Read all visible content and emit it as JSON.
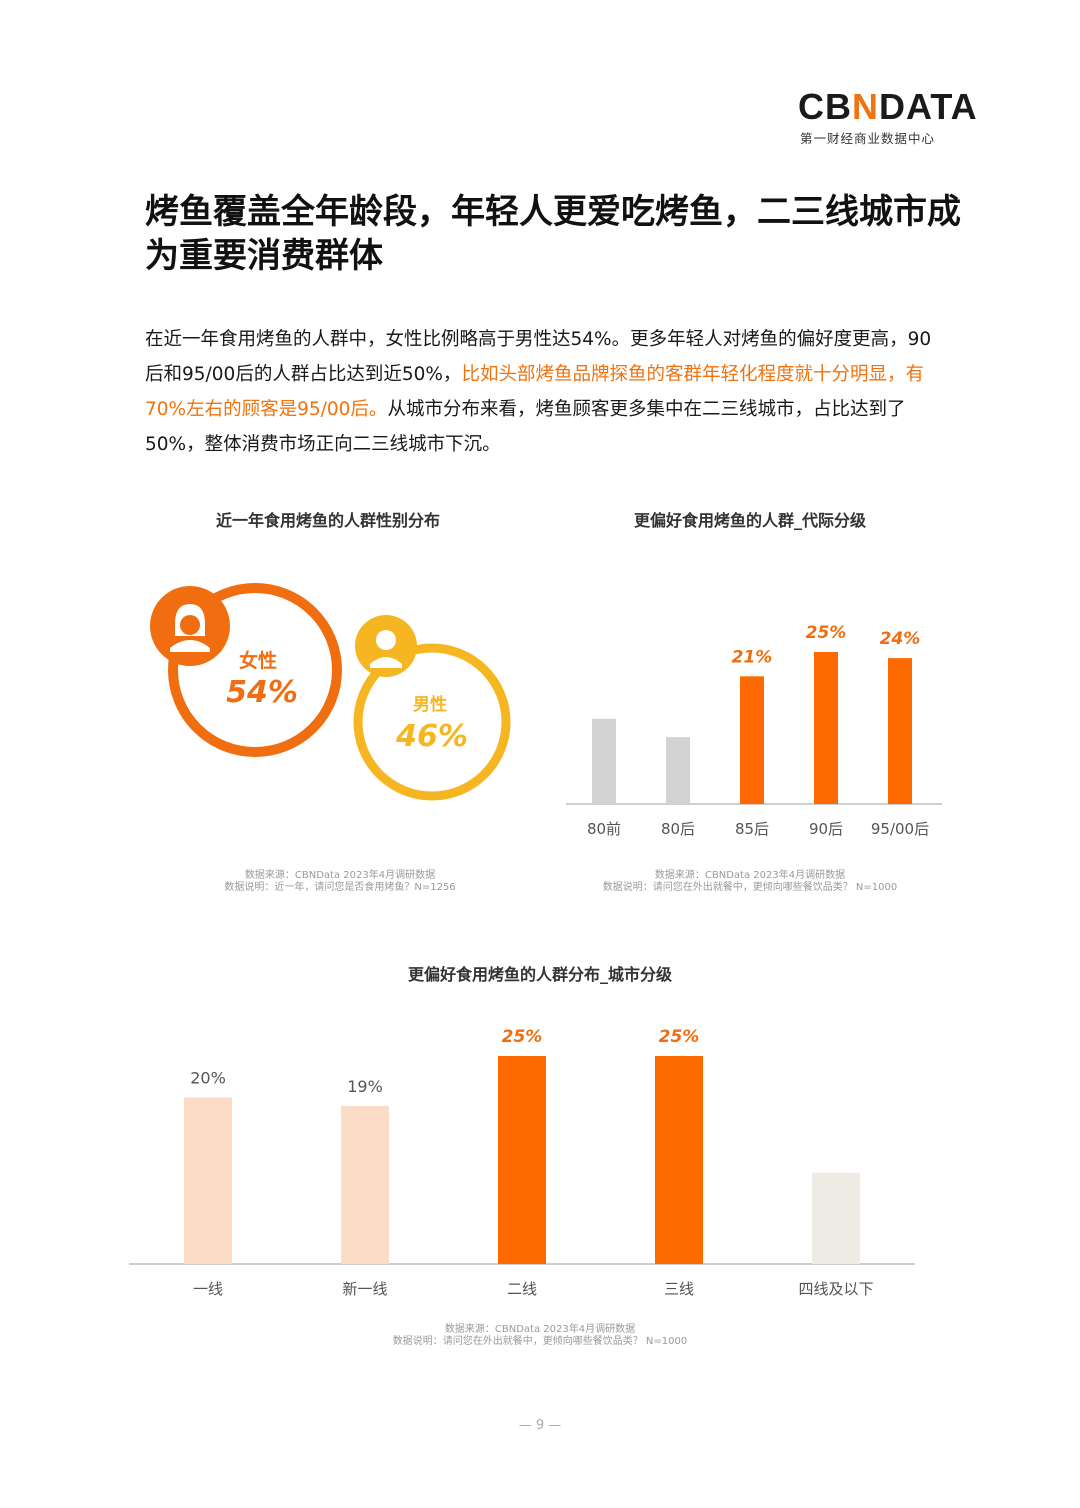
{
  "logo": {
    "pre": "CB",
    "x": "N",
    "post": "DATA",
    "subtitle": "第一财经商业数据中心"
  },
  "title": "烤鱼覆盖全年龄段，年轻人更爱吃烤鱼，二三线城市成为重要消费群体",
  "paragraph": {
    "part1": "在近一年食用烤鱼的人群中，女性比例略高于男性达54%。更多年轻人对烤鱼的偏好度更高，90后和95/00后的人群占比达到近50%，",
    "highlight": "比如头部烤鱼品牌探鱼的客群年轻化程度就十分明显，有70%左右的顾客是95/00后。",
    "part2": "从城市分布来看，烤鱼顾客更多集中在二三线城市，占比达到了50%，整体消费市场正向二三线城市下沉。"
  },
  "gender_chart": {
    "title": "近一年食用烤鱼的人群性别分布",
    "female_label": "女性",
    "female_value": "54%",
    "male_label": "男性",
    "male_value": "46%",
    "colors": {
      "female": "#f06e10",
      "male": "#f5b622"
    },
    "icons": [
      "female-avatar-icon",
      "male-avatar-icon"
    ],
    "source": "数据来源：CBNData 2023年4月调研数据",
    "note": "数据说明：近一年，请问您是否食用烤鱼？N=1256"
  },
  "chart_data": [
    {
      "type": "bar",
      "title": "更偏好食用烤鱼的人群_代际分级",
      "categories": [
        "80前",
        "80后",
        "85后",
        "90后",
        "95/00后"
      ],
      "values": [
        14,
        11,
        21,
        25,
        24
      ],
      "labels": [
        "",
        "",
        "21%",
        "25%",
        "24%"
      ],
      "colors": [
        "#d3d3d3",
        "#d3d3d3",
        "#ff6a00",
        "#ff6a00",
        "#ff6a00"
      ],
      "ylim": [
        0,
        25
      ],
      "source": "数据来源：CBNData 2023年4月调研数据",
      "note": "数据说明：请问您在外出就餐中，更倾向哪些餐饮品类？ N=1000"
    },
    {
      "type": "bar",
      "title": "更偏好食用烤鱼的人群分布_城市分级",
      "categories": [
        "一线",
        "新一线",
        "二线",
        "三线",
        "四线及以下"
      ],
      "values": [
        20,
        19,
        25,
        25,
        11
      ],
      "labels": [
        "20%",
        "19%",
        "25%",
        "25%",
        ""
      ],
      "colors": [
        "#fbdcc6",
        "#fbdcc6",
        "#ff6a00",
        "#ff6a00",
        "#efece6"
      ],
      "ylim": [
        0,
        25
      ],
      "source": "数据来源：CBNData 2023年4月调研数据",
      "note": "数据说明：请问您在外出就餐中，更倾向哪些餐饮品类？ N=1000"
    }
  ],
  "page_number": "9"
}
